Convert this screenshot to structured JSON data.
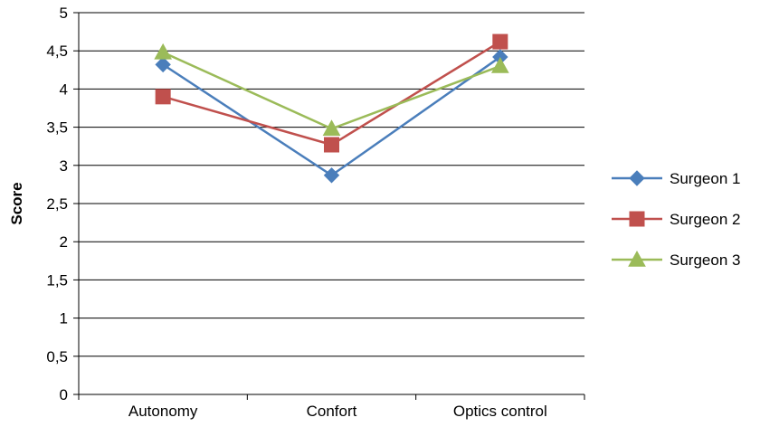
{
  "chart_data": {
    "type": "line",
    "title": "",
    "xlabel": "",
    "ylabel": "Score",
    "categories": [
      "Autonomy",
      "Confort",
      "Optics control"
    ],
    "ylim": [
      0,
      5
    ],
    "ytick_values": [
      0,
      0.5,
      1,
      1.5,
      2,
      2.5,
      3,
      3.5,
      4,
      4.5,
      5
    ],
    "ytick_labels": [
      "0",
      "0,5",
      "1",
      "1,5",
      "2",
      "2,5",
      "3",
      "3,5",
      "4",
      "4,5",
      "5"
    ],
    "grid": true,
    "legend_position": "right",
    "series": [
      {
        "name": "Surgeon 1",
        "color": "#4a7ebb",
        "marker": "diamond",
        "values": [
          4.32,
          2.87,
          4.42
        ]
      },
      {
        "name": "Surgeon 2",
        "color": "#c0504d",
        "marker": "square",
        "values": [
          3.9,
          3.27,
          4.62
        ]
      },
      {
        "name": "Surgeon 3",
        "color": "#9bbb59",
        "marker": "triangle",
        "values": [
          4.48,
          3.48,
          4.3
        ]
      }
    ]
  }
}
